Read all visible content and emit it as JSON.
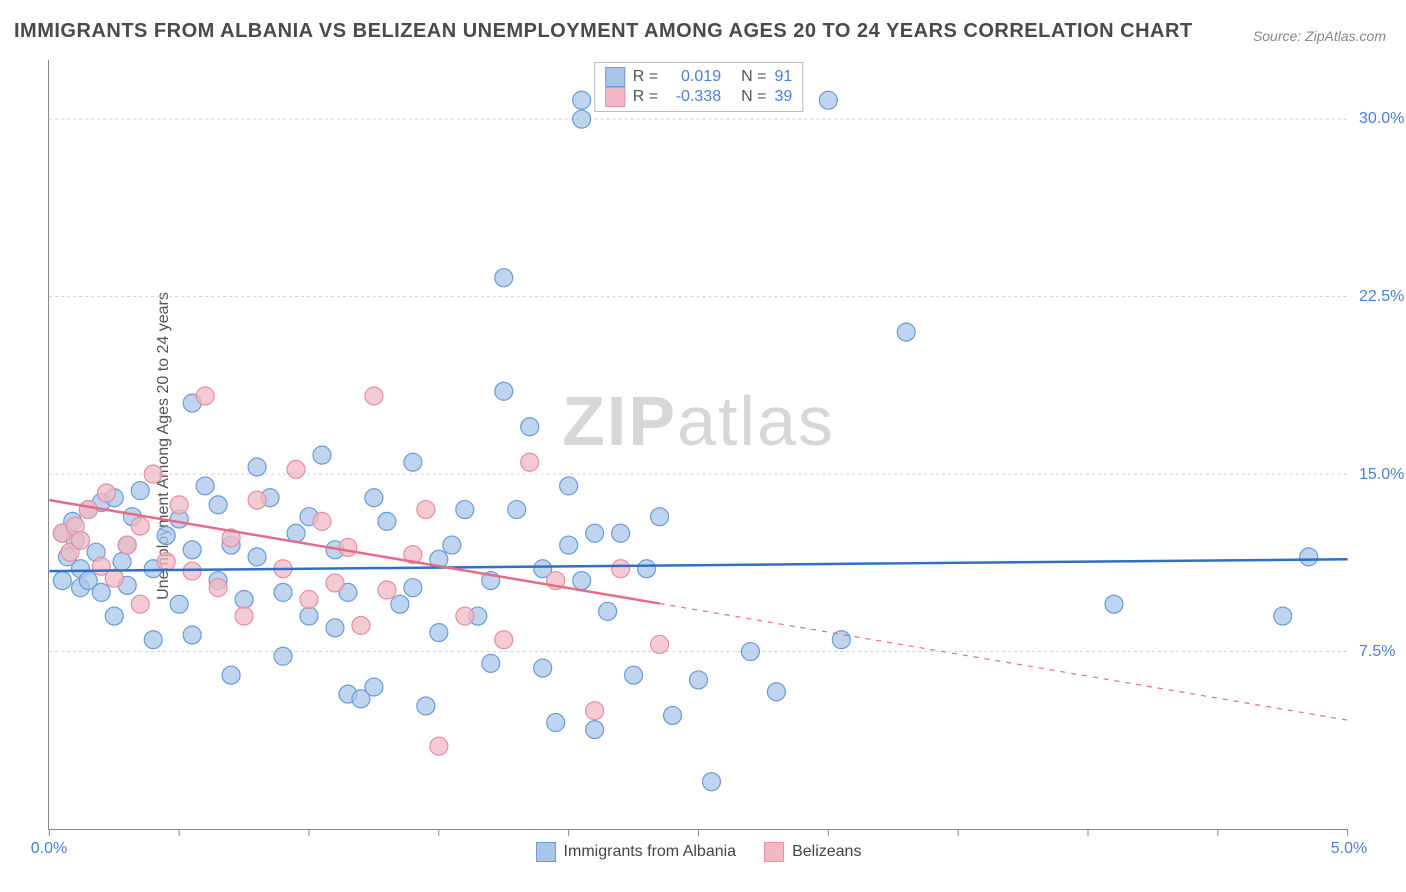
{
  "title": "IMMIGRANTS FROM ALBANIA VS BELIZEAN UNEMPLOYMENT AMONG AGES 20 TO 24 YEARS CORRELATION CHART",
  "source": "Source: ZipAtlas.com",
  "ylabel": "Unemployment Among Ages 20 to 24 years",
  "watermark_bold": "ZIP",
  "watermark_rest": "atlas",
  "chart": {
    "type": "scatter",
    "xlim": [
      0.0,
      5.0
    ],
    "ylim": [
      0.0,
      32.5
    ],
    "xticks": [
      0.0,
      0.5,
      1.0,
      1.5,
      2.0,
      2.5,
      3.0,
      3.5,
      4.0,
      4.5,
      5.0
    ],
    "xtick_labels": {
      "0": "0.0%",
      "10": "5.0%"
    },
    "ygrid": [
      7.5,
      15.0,
      22.5,
      30.0
    ],
    "ytick_labels": [
      "7.5%",
      "15.0%",
      "22.5%",
      "30.0%"
    ],
    "background_color": "#ffffff",
    "grid_color": "#d0d0d0",
    "axis_color": "#888888",
    "tick_label_color": "#4a7fd6",
    "marker_radius": 9,
    "marker_stroke_width": 1.2,
    "line_width": 2.5,
    "series": [
      {
        "name": "Immigrants from Albania",
        "fill": "#a9c5ea",
        "stroke": "#6a9bd8",
        "line_color": "#2f6fc6",
        "R": "0.019",
        "N": "91",
        "trend": {
          "y0": 10.9,
          "y1": 11.4,
          "solid_to_x": 5.0
        },
        "points": [
          [
            0.05,
            10.5
          ],
          [
            0.05,
            12.5
          ],
          [
            0.07,
            11.5
          ],
          [
            0.09,
            13.0
          ],
          [
            0.1,
            12.2
          ],
          [
            0.12,
            11.0
          ],
          [
            0.12,
            10.2
          ],
          [
            0.15,
            10.5
          ],
          [
            0.15,
            13.5
          ],
          [
            0.18,
            11.7
          ],
          [
            0.2,
            13.8
          ],
          [
            0.2,
            10.0
          ],
          [
            0.25,
            14.0
          ],
          [
            0.25,
            9.0
          ],
          [
            0.28,
            11.3
          ],
          [
            0.3,
            10.3
          ],
          [
            0.3,
            12.0
          ],
          [
            0.32,
            13.2
          ],
          [
            0.35,
            14.3
          ],
          [
            0.4,
            11.0
          ],
          [
            0.4,
            8.0
          ],
          [
            0.45,
            12.4
          ],
          [
            0.5,
            13.1
          ],
          [
            0.5,
            9.5
          ],
          [
            0.55,
            18.0
          ],
          [
            0.55,
            11.8
          ],
          [
            0.55,
            8.2
          ],
          [
            0.6,
            14.5
          ],
          [
            0.65,
            10.5
          ],
          [
            0.65,
            13.7
          ],
          [
            0.7,
            12.0
          ],
          [
            0.7,
            6.5
          ],
          [
            0.75,
            9.7
          ],
          [
            0.8,
            11.5
          ],
          [
            0.8,
            15.3
          ],
          [
            0.85,
            14.0
          ],
          [
            0.9,
            10.0
          ],
          [
            0.9,
            7.3
          ],
          [
            0.95,
            12.5
          ],
          [
            1.0,
            13.2
          ],
          [
            1.0,
            9.0
          ],
          [
            1.05,
            15.8
          ],
          [
            1.1,
            8.5
          ],
          [
            1.1,
            11.8
          ],
          [
            1.15,
            10.0
          ],
          [
            1.15,
            5.7
          ],
          [
            1.2,
            5.5
          ],
          [
            1.25,
            6.0
          ],
          [
            1.25,
            14.0
          ],
          [
            1.3,
            13.0
          ],
          [
            1.35,
            9.5
          ],
          [
            1.4,
            15.5
          ],
          [
            1.4,
            10.2
          ],
          [
            1.45,
            5.2
          ],
          [
            1.5,
            11.4
          ],
          [
            1.5,
            8.3
          ],
          [
            1.55,
            12.0
          ],
          [
            1.6,
            13.5
          ],
          [
            1.65,
            9.0
          ],
          [
            1.7,
            7.0
          ],
          [
            1.7,
            10.5
          ],
          [
            1.75,
            18.5
          ],
          [
            1.75,
            23.3
          ],
          [
            1.8,
            13.5
          ],
          [
            1.85,
            17.0
          ],
          [
            1.9,
            11.0
          ],
          [
            1.9,
            6.8
          ],
          [
            1.95,
            4.5
          ],
          [
            2.0,
            14.5
          ],
          [
            2.0,
            12.0
          ],
          [
            2.05,
            10.5
          ],
          [
            2.05,
            30.0
          ],
          [
            2.05,
            30.8
          ],
          [
            2.1,
            4.2
          ],
          [
            2.1,
            12.5
          ],
          [
            2.15,
            9.2
          ],
          [
            2.2,
            12.5
          ],
          [
            2.25,
            6.5
          ],
          [
            2.3,
            11.0
          ],
          [
            2.35,
            13.2
          ],
          [
            2.4,
            4.8
          ],
          [
            2.5,
            6.3
          ],
          [
            2.55,
            2.0
          ],
          [
            2.7,
            7.5
          ],
          [
            2.8,
            5.8
          ],
          [
            3.0,
            30.8
          ],
          [
            3.05,
            8.0
          ],
          [
            3.3,
            21.0
          ],
          [
            4.1,
            9.5
          ],
          [
            4.75,
            9.0
          ],
          [
            4.85,
            11.5
          ]
        ]
      },
      {
        "name": "Belizeans",
        "fill": "#f2b9c4",
        "stroke": "#e98da0",
        "line_color": "#e76b88",
        "R": "-0.338",
        "N": "39",
        "trend": {
          "y0": 13.9,
          "y1": 4.6,
          "solid_to_x": 2.35
        },
        "points": [
          [
            0.05,
            12.5
          ],
          [
            0.08,
            11.7
          ],
          [
            0.1,
            12.8
          ],
          [
            0.12,
            12.2
          ],
          [
            0.15,
            13.5
          ],
          [
            0.2,
            11.1
          ],
          [
            0.22,
            14.2
          ],
          [
            0.25,
            10.6
          ],
          [
            0.3,
            12.0
          ],
          [
            0.35,
            12.8
          ],
          [
            0.35,
            9.5
          ],
          [
            0.4,
            15.0
          ],
          [
            0.45,
            11.3
          ],
          [
            0.5,
            13.7
          ],
          [
            0.55,
            10.9
          ],
          [
            0.6,
            18.3
          ],
          [
            0.65,
            10.2
          ],
          [
            0.7,
            12.3
          ],
          [
            0.75,
            9.0
          ],
          [
            0.8,
            13.9
          ],
          [
            0.9,
            11.0
          ],
          [
            0.95,
            15.2
          ],
          [
            1.0,
            9.7
          ],
          [
            1.05,
            13.0
          ],
          [
            1.1,
            10.4
          ],
          [
            1.15,
            11.9
          ],
          [
            1.2,
            8.6
          ],
          [
            1.25,
            18.3
          ],
          [
            1.3,
            10.1
          ],
          [
            1.4,
            11.6
          ],
          [
            1.45,
            13.5
          ],
          [
            1.5,
            3.5
          ],
          [
            1.6,
            9.0
          ],
          [
            1.75,
            8.0
          ],
          [
            1.85,
            15.5
          ],
          [
            1.95,
            10.5
          ],
          [
            2.1,
            5.0
          ],
          [
            2.2,
            11.0
          ],
          [
            2.35,
            7.8
          ]
        ]
      }
    ]
  },
  "legend_top": [
    {
      "swatch_fill": "#a9c5ea",
      "swatch_stroke": "#6a9bd8",
      "R_label": "R =",
      "R_val": "0.019",
      "N_label": "N =",
      "N_val": "91"
    },
    {
      "swatch_fill": "#f2b9c4",
      "swatch_stroke": "#e98da0",
      "R_label": "R =",
      "R_val": "-0.338",
      "N_label": "N =",
      "N_val": "39"
    }
  ],
  "legend_bottom": [
    {
      "swatch_fill": "#a9c5ea",
      "swatch_stroke": "#6a9bd8",
      "label": "Immigrants from Albania"
    },
    {
      "swatch_fill": "#f2b9c4",
      "swatch_stroke": "#e98da0",
      "label": "Belizeans"
    }
  ]
}
